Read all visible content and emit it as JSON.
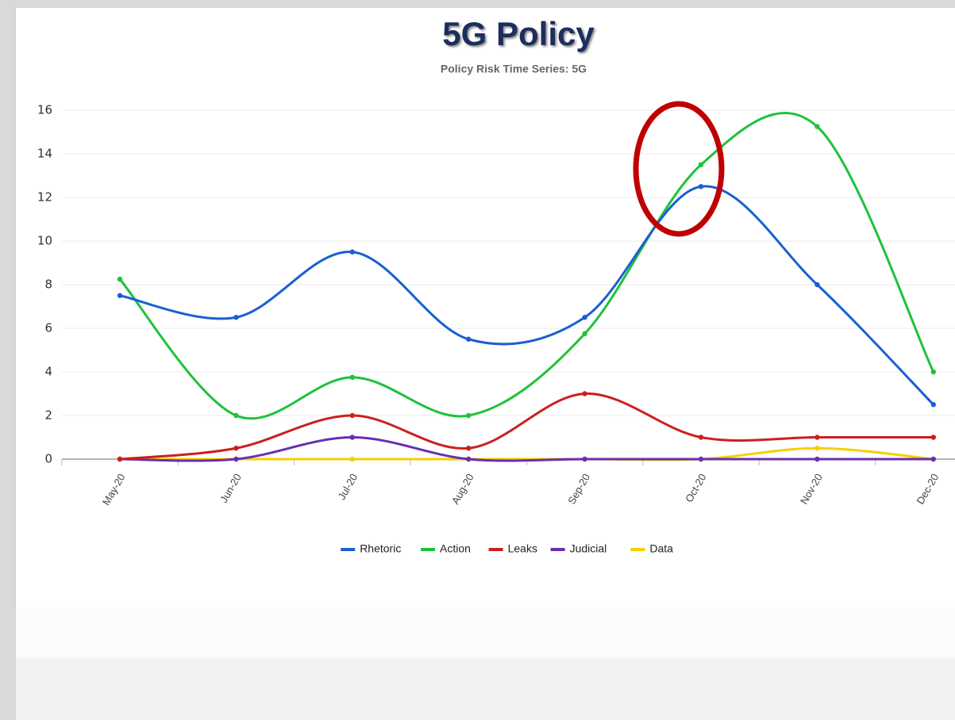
{
  "chart_data": {
    "type": "line",
    "title": "5G Policy",
    "subtitle": "Policy Risk Time Series: 5G",
    "categories": [
      "May-20",
      "Jun-20",
      "Jul-20",
      "Aug-20",
      "Sep-20",
      "Oct-20",
      "Nov-20",
      "Dec-20"
    ],
    "series": [
      {
        "name": "Rhetoric",
        "color": "#1a5fd1",
        "values": [
          7.5,
          6.5,
          9.5,
          5.5,
          6.5,
          12.5,
          8,
          2.5
        ]
      },
      {
        "name": "Action",
        "color": "#1ec23a",
        "values": [
          8.25,
          2,
          3.75,
          2,
          5.75,
          13.5,
          15.25,
          4
        ]
      },
      {
        "name": "Leaks",
        "color": "#cc1f1f",
        "values": [
          0,
          0.5,
          2,
          0.5,
          3,
          1,
          1,
          1
        ]
      },
      {
        "name": "Judicial",
        "color": "#6a2fb0",
        "values": [
          0,
          0,
          1,
          0,
          0,
          0,
          0,
          0
        ]
      },
      {
        "name": "Data",
        "color": "#f5d000",
        "values": [
          0,
          0,
          0,
          0,
          0,
          0,
          0.5,
          0
        ]
      }
    ],
    "ylim": [
      0,
      16
    ],
    "yticks": [
      0,
      2,
      4,
      6,
      8,
      10,
      12,
      14,
      16
    ],
    "grid": true,
    "smooth": true,
    "legend": "bottom"
  }
}
